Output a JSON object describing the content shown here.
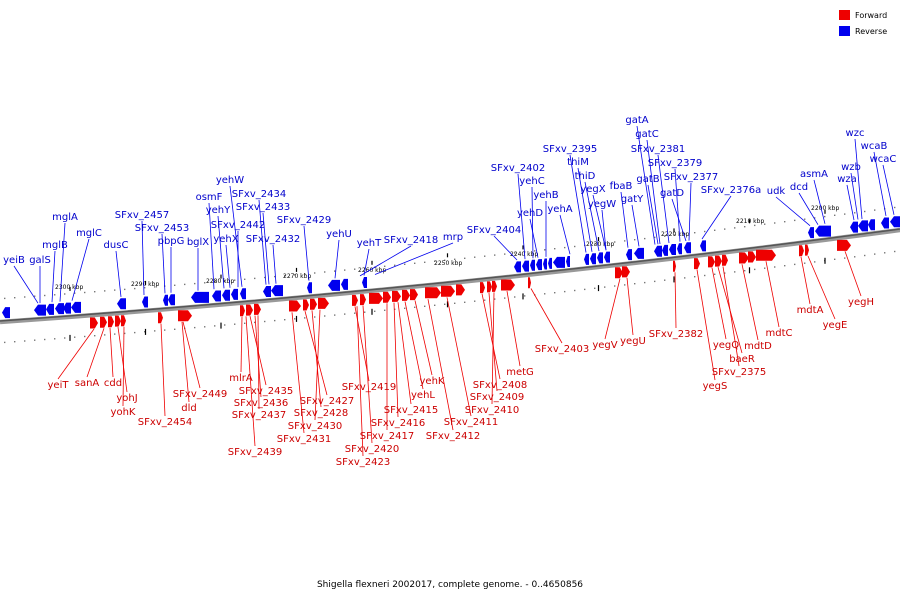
{
  "legend": {
    "forward_label": "Forward",
    "reverse_label": "Reverse",
    "forward_color": "#ee0000",
    "reverse_color": "#0000ee"
  },
  "caption": "Shigella flexneri 2002017, complete genome. - 0..4650856",
  "tick_labels": [
    "2300 kbp",
    "2290 kbp",
    "2280 kbp",
    "2270 kbp",
    "2260 kbp",
    "2250 kbp",
    "2240 kbp",
    "2230 kbp",
    "2220 kbp",
    "2210 kbp",
    "2200 kbp"
  ],
  "reverse_genes": [
    "yeiB",
    "galS",
    "mglB",
    "mglA",
    "mglC",
    "dusC",
    "SFxv_2457",
    "SFxv_2453",
    "pbpG",
    "bglX",
    "osmF",
    "yehY",
    "yehX",
    "SFxv_2442",
    "yehW",
    "SFxv_2434",
    "SFxv_2433",
    "SFxv_2432",
    "SFxv_2429",
    "yehU",
    "yehT",
    "SFxv_2418",
    "mrp",
    "SFxv_2404",
    "SFxv_2402",
    "yehC",
    "yehD",
    "yehB",
    "yehA",
    "SFxv_2395",
    "thiM",
    "thiD",
    "yegX",
    "yegW",
    "fbaB",
    "gatY",
    "gatA",
    "gatC",
    "SFxv_2381",
    "gatB",
    "SFxv_2379",
    "gatD",
    "SFxv_2377",
    "SFxv_2376a",
    "udk",
    "dcd",
    "asmA",
    "wzc",
    "wcaB",
    "wzb",
    "wza",
    "wcaC"
  ],
  "forward_genes": [
    "yeiT",
    "sanA",
    "cdd",
    "yohJ",
    "yohK",
    "SFxv_2454",
    "SFxv_2449",
    "dld",
    "mlrA",
    "SFxv_2435",
    "SFxv_2436",
    "SFxv_2437",
    "SFxv_2439",
    "SFxv_2427",
    "SFxv_2428",
    "SFxv_2430",
    "SFxv_2431",
    "SFxv_2419",
    "SFxv_2420",
    "SFxv_2423",
    "SFxv_2415",
    "SFxv_2416",
    "SFxv_2417",
    "yehK",
    "yehL",
    "SFxv_2411",
    "SFxv_2412",
    "SFxv_2408",
    "SFxv_2409",
    "SFxv_2410",
    "metG",
    "SFxv_2403",
    "yegV",
    "yegU",
    "SFxv_2382",
    "yegQ",
    "yegS",
    "baeR",
    "SFxv_2375",
    "mdtD",
    "mdtC",
    "mdtA",
    "yegE",
    "yegH"
  ]
}
